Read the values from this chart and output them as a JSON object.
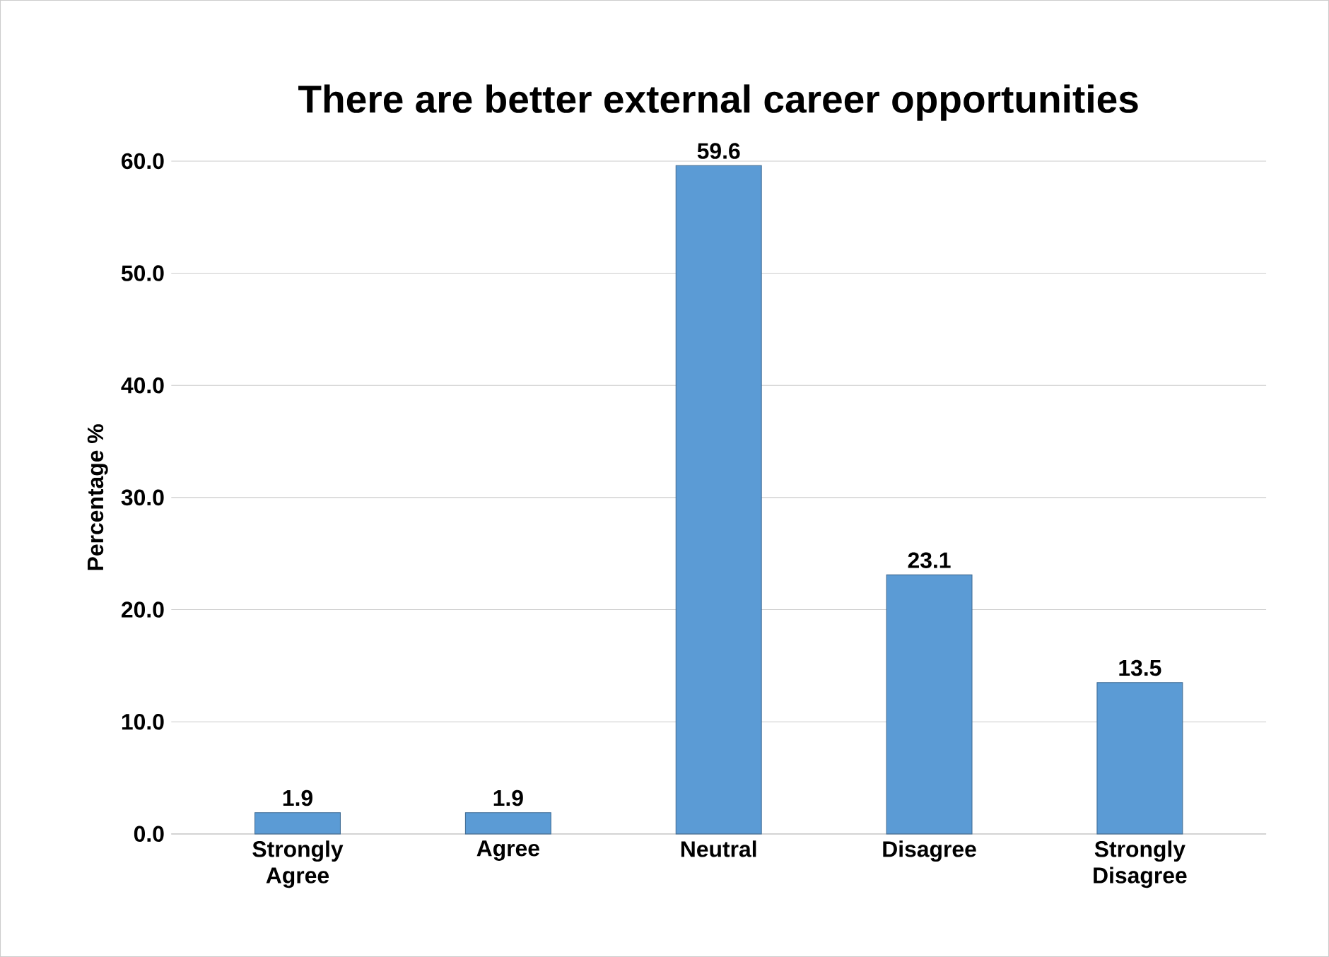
{
  "chart_data": {
    "type": "bar",
    "title": "There are better external career opportunities",
    "ylabel": "Percentage %",
    "categories": [
      "Strongly Agree",
      "Agree",
      "Neutral",
      "Disagree",
      "Strongly Disagree"
    ],
    "values": [
      1.9,
      1.9,
      59.6,
      23.1,
      13.5
    ],
    "color": "#5b9bd5",
    "data_labels": true,
    "ylim": [
      0,
      60
    ],
    "yticks": [
      {
        "value": 0,
        "label": "0.0"
      },
      {
        "value": 10,
        "label": "10.0"
      },
      {
        "value": 20,
        "label": "20.0"
      },
      {
        "value": 30,
        "label": "30.0"
      },
      {
        "value": 40,
        "label": "40.0"
      },
      {
        "value": 50,
        "label": "50.0"
      },
      {
        "value": 60,
        "label": "60.0"
      }
    ],
    "grid": "y"
  }
}
